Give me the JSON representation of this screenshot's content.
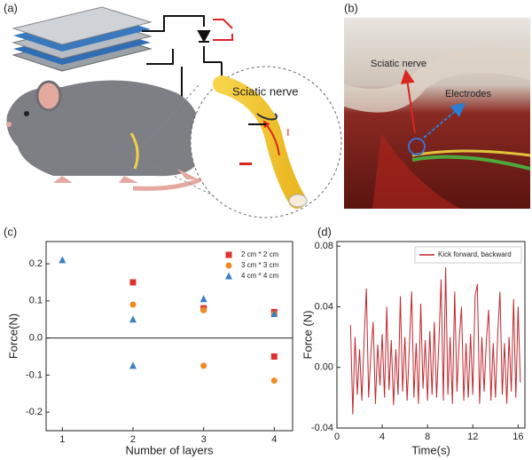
{
  "panels": {
    "a": {
      "label": "(a)",
      "nerve_label": "Sciatic nerve",
      "current_label": "I"
    },
    "b": {
      "label": "(b)",
      "nerve_label": "Sciatic nerve",
      "electrode_label": "Electrodes"
    }
  },
  "chart_data": [
    {
      "type": "scatter",
      "panel_label": "(c)",
      "xlabel": "Number of layers",
      "ylabel": "Force(N)",
      "xlim": [
        0.77,
        4.26
      ],
      "xticks": [
        1,
        2,
        3,
        4
      ],
      "ylim": [
        -0.25,
        0.26
      ],
      "yticks": [
        -0.2,
        -0.1,
        {
          "value": 0,
          "label": "0.0"
        },
        0.1,
        0.2
      ],
      "zero_line": true,
      "legend": "upper right",
      "series": [
        {
          "name": "2 cm * 2 cm",
          "color": "#e0302c",
          "marker": "square",
          "x": [
            2,
            3,
            4,
            4
          ],
          "values": [
            0.15,
            0.08,
            0.07,
            -0.05
          ]
        },
        {
          "name": "3 cm * 3 cm",
          "color": "#f08a24",
          "marker": "circle",
          "x": [
            2,
            3,
            4,
            3,
            4
          ],
          "values": [
            0.09,
            0.075,
            0.065,
            -0.075,
            -0.115
          ]
        },
        {
          "name": "4 cm * 4 cm",
          "color": "#3b7fc4",
          "marker": "triangle",
          "x": [
            1,
            2,
            2,
            3,
            4
          ],
          "values": [
            0.21,
            0.05,
            -0.075,
            0.105,
            0.065
          ]
        }
      ]
    },
    {
      "type": "line",
      "panel_label": "(d)",
      "xlabel": "Time(s)",
      "ylabel": "Force (N)",
      "xlim": [
        0,
        16.6
      ],
      "xticks": [
        0,
        4,
        8,
        12,
        16
      ],
      "ylim": [
        -0.04,
        0.083
      ],
      "yticks": [
        {
          "value": -0.04,
          "label": "-0.04"
        },
        {
          "value": 0,
          "label": "0.00"
        },
        {
          "value": 0.04,
          "label": "0.04"
        },
        {
          "value": 0.08,
          "label": "0.08"
        }
      ],
      "legend": "upper right",
      "x": [
        1.2,
        1.4,
        1.6,
        1.8,
        2.0,
        2.2,
        2.4,
        2.6,
        2.8,
        3.0,
        3.2,
        3.4,
        3.6,
        3.8,
        4.0,
        4.2,
        4.4,
        4.6,
        4.8,
        5.0,
        5.2,
        5.4,
        5.6,
        5.8,
        6.0,
        6.2,
        6.4,
        6.6,
        6.8,
        7.0,
        7.2,
        7.4,
        7.6,
        7.8,
        8.0,
        8.2,
        8.4,
        8.6,
        8.8,
        9.0,
        9.2,
        9.4,
        9.6,
        9.8,
        10.0,
        10.2,
        10.4,
        10.6,
        10.8,
        11.0,
        11.2,
        11.4,
        11.6,
        11.8,
        12.0,
        12.2,
        12.4,
        12.6,
        12.8,
        13.0,
        13.2,
        13.4,
        13.6,
        13.8,
        14.0,
        14.2,
        14.4,
        14.6,
        14.8,
        15.0,
        15.2,
        15.4,
        15.6,
        15.8,
        16.0,
        16.2
      ],
      "series": [
        {
          "name": "Kick forward, backward",
          "color": "#c0272d",
          "values": [
            0.028,
            -0.031,
            0.02,
            -0.018,
            0.012,
            -0.022,
            0.018,
            0.052,
            -0.02,
            0.01,
            0.03,
            -0.024,
            0.015,
            -0.012,
            0.022,
            -0.02,
            0.04,
            -0.015,
            0.018,
            -0.025,
            0.012,
            -0.018,
            0.047,
            -0.016,
            0.02,
            -0.022,
            0.014,
            0.05,
            -0.02,
            0.016,
            -0.024,
            0.042,
            -0.014,
            0.018,
            -0.022,
            0.024,
            -0.018,
            0.03,
            -0.02,
            0.016,
            0.058,
            -0.022,
            0.066,
            -0.018,
            0.02,
            -0.024,
            0.05,
            -0.016,
            0.018,
            0.04,
            -0.022,
            0.016,
            -0.02,
            0.022,
            -0.018,
            0.047,
            0.055,
            -0.024,
            0.02,
            -0.016,
            0.018,
            0.038,
            -0.022,
            0.016,
            -0.02,
            0.022,
            0.05,
            -0.018,
            0.016,
            -0.024,
            0.02,
            -0.016,
            0.045,
            -0.02,
            0.04,
            -0.01
          ]
        }
      ]
    }
  ]
}
